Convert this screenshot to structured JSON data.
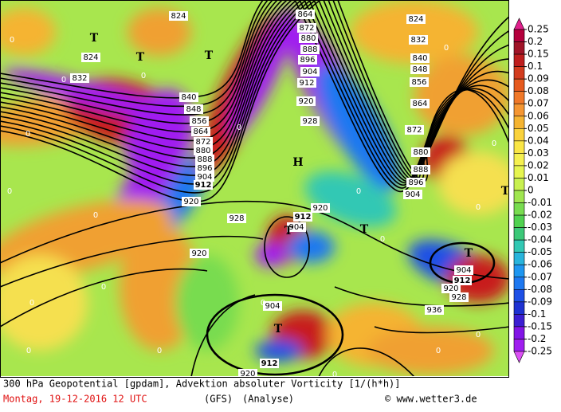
{
  "map_title": "300 hPa Geopotential [gpdam], Advektion absoluter Vorticity [1/(h*h)]",
  "date_line": "Montag, 19-12-2016  12 UTC",
  "model": "(GFS)",
  "run": "(Analyse)",
  "credit": "© www.wetter3.de",
  "colorbar": {
    "ticks": [
      0.25,
      0.2,
      0.15,
      0.1,
      0.09,
      0.08,
      0.07,
      0.06,
      0.05,
      0.04,
      0.03,
      0.02,
      0.01,
      0,
      -0.01,
      -0.02,
      -0.03,
      -0.04,
      -0.05,
      -0.06,
      -0.07,
      -0.08,
      -0.09,
      -0.1,
      -0.15,
      -0.2,
      -0.25
    ],
    "colors": [
      "#e0208c",
      "#b4003c",
      "#a01428",
      "#be1e1e",
      "#d23c1e",
      "#e65a1e",
      "#f07828",
      "#f59632",
      "#f5b432",
      "#fad23c",
      "#fae646",
      "#f5f050",
      "#e6f550",
      "#c8f050",
      "#a0e650",
      "#78dc50",
      "#50d250",
      "#3cc878",
      "#32c8b4",
      "#28b4dc",
      "#1e96f0",
      "#1e78f0",
      "#1e50e6",
      "#1e32d2",
      "#3c1ed2",
      "#8214e6",
      "#a01ef0",
      "#dc50f5"
    ]
  },
  "contour_labels": [
    824,
    832,
    840,
    848,
    856,
    864,
    872,
    880,
    888,
    896,
    904,
    912,
    920,
    824,
    864,
    872,
    880,
    888,
    896,
    904,
    912,
    920,
    928,
    824,
    832,
    840,
    848,
    856,
    864,
    872,
    880,
    888,
    896,
    904,
    928,
    912,
    904,
    920,
    920,
    904,
    912,
    920,
    928,
    936,
    904,
    912,
    920
  ],
  "bold_contours": [
    912
  ],
  "pressure_centers": [
    "T",
    "T",
    "T",
    "T",
    "T",
    "T",
    "T",
    "T",
    "H"
  ],
  "vorticity_labels": [
    0,
    0,
    0,
    0,
    0,
    0,
    0,
    0,
    0,
    0,
    0,
    0,
    0,
    0,
    0,
    0,
    0,
    0,
    0,
    0
  ]
}
